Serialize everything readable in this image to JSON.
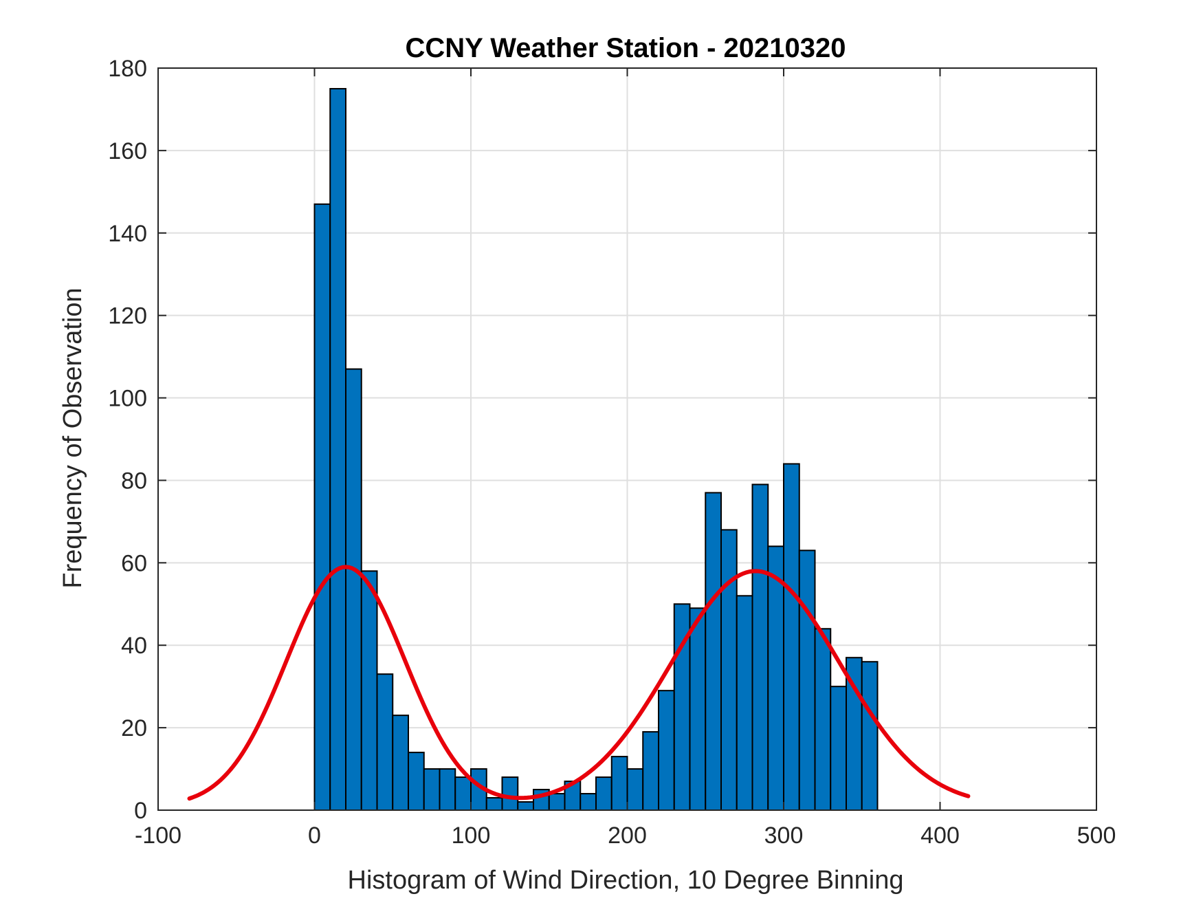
{
  "chart_data": {
    "type": "bar",
    "title": "CCNY Weather Station - 20210320",
    "xlabel": "Histogram of Wind Direction, 10 Degree Binning",
    "ylabel": "Frequency of Observation",
    "xlim": [
      -100,
      500
    ],
    "ylim": [
      0,
      180
    ],
    "xticks": [
      -100,
      0,
      100,
      200,
      300,
      400,
      500
    ],
    "yticks": [
      0,
      20,
      40,
      60,
      80,
      100,
      120,
      140,
      160,
      180
    ],
    "xtick_labels": [
      "-100",
      "0",
      "100",
      "200",
      "300",
      "400",
      "500"
    ],
    "ytick_labels": [
      "0",
      "20",
      "40",
      "60",
      "80",
      "100",
      "120",
      "140",
      "160",
      "180"
    ],
    "grid": true,
    "bin_width": 10,
    "bins": {
      "start": [
        0,
        10,
        20,
        30,
        40,
        50,
        60,
        70,
        80,
        90,
        100,
        110,
        120,
        130,
        140,
        150,
        160,
        170,
        180,
        190,
        200,
        210,
        220,
        230,
        240,
        250,
        260,
        270,
        280,
        290,
        300,
        310,
        320,
        330,
        340,
        350
      ],
      "values": [
        147,
        175,
        107,
        58,
        33,
        23,
        14,
        10,
        10,
        8,
        10,
        3,
        8,
        2,
        5,
        4,
        7,
        4,
        8,
        13,
        10,
        19,
        29,
        50,
        49,
        77,
        68,
        52,
        79,
        64,
        84,
        63,
        44,
        30,
        37,
        36
      ]
    },
    "fit_curve": {
      "name": "fit",
      "components": [
        {
          "mean": 20,
          "sd": 38,
          "peak": 58
        },
        {
          "mean": 282,
          "sd": 54,
          "peak": 57
        }
      ],
      "baseline": 1,
      "x_range": [
        -80,
        418
      ]
    },
    "colors": {
      "bar_fill": "#0072BD",
      "bar_edge": "#000000",
      "curve": "#E8000B",
      "grid": "#DFDFDF",
      "axes": "#262626"
    }
  }
}
